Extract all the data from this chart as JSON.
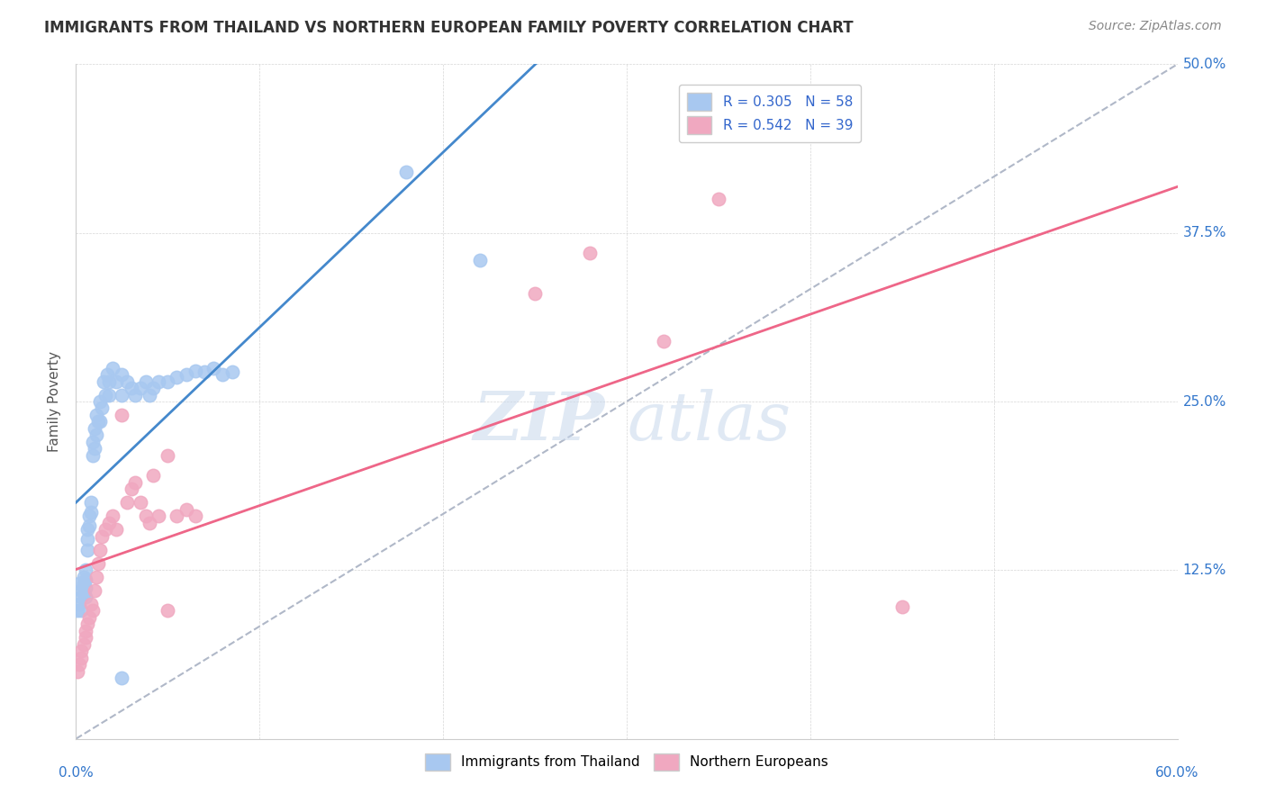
{
  "title": "IMMIGRANTS FROM THAILAND VS NORTHERN EUROPEAN FAMILY POVERTY CORRELATION CHART",
  "source": "Source: ZipAtlas.com",
  "ylabel": "Family Poverty",
  "xlim": [
    0.0,
    0.6
  ],
  "ylim": [
    0.0,
    0.5
  ],
  "yticks": [
    0.0,
    0.125,
    0.25,
    0.375,
    0.5
  ],
  "ytick_labels": [
    "",
    "12.5%",
    "25.0%",
    "37.5%",
    "50.0%"
  ],
  "blue_color": "#a8c8f0",
  "pink_color": "#f0a8c0",
  "blue_line_color": "#4488cc",
  "pink_line_color": "#ee6688",
  "dashed_line_color": "#b0b8c8",
  "blue_scatter_x": [
    0.001,
    0.002,
    0.002,
    0.003,
    0.003,
    0.003,
    0.004,
    0.004,
    0.004,
    0.005,
    0.005,
    0.005,
    0.005,
    0.006,
    0.006,
    0.006,
    0.007,
    0.007,
    0.008,
    0.008,
    0.009,
    0.009,
    0.01,
    0.01,
    0.011,
    0.011,
    0.012,
    0.013,
    0.013,
    0.014,
    0.015,
    0.016,
    0.017,
    0.018,
    0.018,
    0.02,
    0.022,
    0.025,
    0.025,
    0.028,
    0.03,
    0.032,
    0.035,
    0.038,
    0.04,
    0.042,
    0.045,
    0.05,
    0.055,
    0.06,
    0.065,
    0.07,
    0.075,
    0.08,
    0.085,
    0.18,
    0.22,
    0.025
  ],
  "blue_scatter_y": [
    0.095,
    0.1,
    0.115,
    0.11,
    0.105,
    0.095,
    0.12,
    0.115,
    0.108,
    0.125,
    0.118,
    0.112,
    0.105,
    0.155,
    0.148,
    0.14,
    0.165,
    0.158,
    0.175,
    0.168,
    0.22,
    0.21,
    0.23,
    0.215,
    0.24,
    0.225,
    0.235,
    0.25,
    0.235,
    0.245,
    0.265,
    0.255,
    0.27,
    0.265,
    0.255,
    0.275,
    0.265,
    0.27,
    0.255,
    0.265,
    0.26,
    0.255,
    0.26,
    0.265,
    0.255,
    0.26,
    0.265,
    0.265,
    0.268,
    0.27,
    0.273,
    0.272,
    0.275,
    0.27,
    0.272,
    0.42,
    0.355,
    0.045
  ],
  "pink_scatter_x": [
    0.001,
    0.002,
    0.003,
    0.003,
    0.004,
    0.005,
    0.005,
    0.006,
    0.007,
    0.008,
    0.009,
    0.01,
    0.011,
    0.012,
    0.013,
    0.014,
    0.016,
    0.018,
    0.02,
    0.022,
    0.025,
    0.028,
    0.03,
    0.032,
    0.035,
    0.038,
    0.04,
    0.042,
    0.045,
    0.05,
    0.05,
    0.055,
    0.06,
    0.065,
    0.32,
    0.35,
    0.28,
    0.25,
    0.45
  ],
  "pink_scatter_y": [
    0.05,
    0.055,
    0.06,
    0.065,
    0.07,
    0.075,
    0.08,
    0.085,
    0.09,
    0.1,
    0.095,
    0.11,
    0.12,
    0.13,
    0.14,
    0.15,
    0.155,
    0.16,
    0.165,
    0.155,
    0.24,
    0.175,
    0.185,
    0.19,
    0.175,
    0.165,
    0.16,
    0.195,
    0.165,
    0.21,
    0.095,
    0.165,
    0.17,
    0.165,
    0.295,
    0.4,
    0.36,
    0.33,
    0.098
  ]
}
